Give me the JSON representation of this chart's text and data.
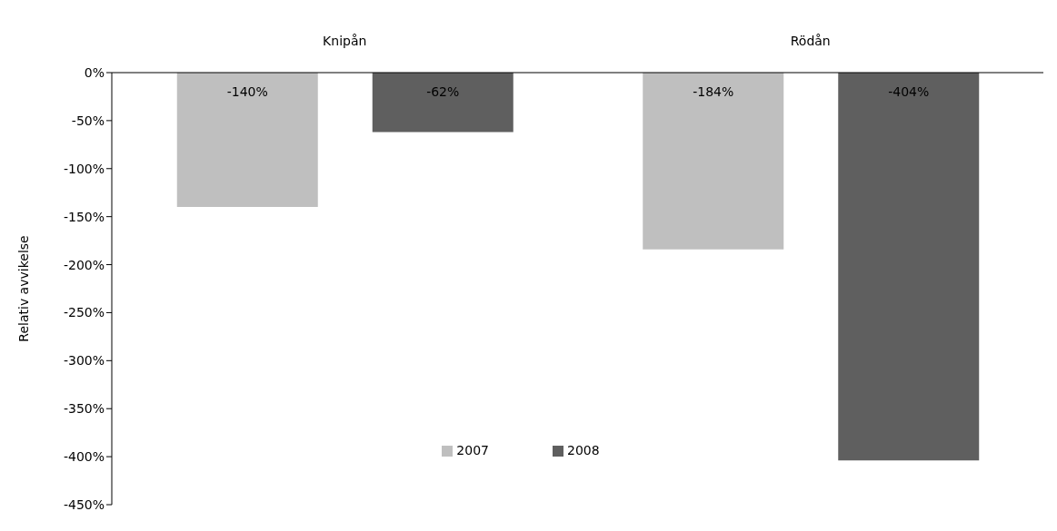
{
  "chart_data": {
    "type": "bar",
    "categories": [
      "Knipån",
      "Rödån"
    ],
    "ylabel": "Relativ avvikelse",
    "series": [
      {
        "name": "2007",
        "color": "#bfbfbf",
        "values": [
          -140,
          -184
        ],
        "value_labels": [
          "-140%",
          "-184%"
        ]
      },
      {
        "name": "2008",
        "color": "#5f5f5f",
        "values": [
          -62,
          -404
        ],
        "value_labels": [
          "-62%",
          "-404%"
        ]
      }
    ],
    "ylim": [
      -450,
      0
    ],
    "yticks": [
      {
        "value": -450,
        "label": "-450%"
      },
      {
        "value": -400,
        "label": "-400%"
      },
      {
        "value": -350,
        "label": "-350%"
      },
      {
        "value": -300,
        "label": "-300%"
      },
      {
        "value": -250,
        "label": "-250%"
      },
      {
        "value": -200,
        "label": "-200%"
      },
      {
        "value": -150,
        "label": "-150%"
      },
      {
        "value": -100,
        "label": "-100%"
      },
      {
        "value": -50,
        "label": "-50%"
      },
      {
        "value": 0,
        "label": "0%"
      }
    ],
    "grid": false,
    "legend": "bottom"
  }
}
